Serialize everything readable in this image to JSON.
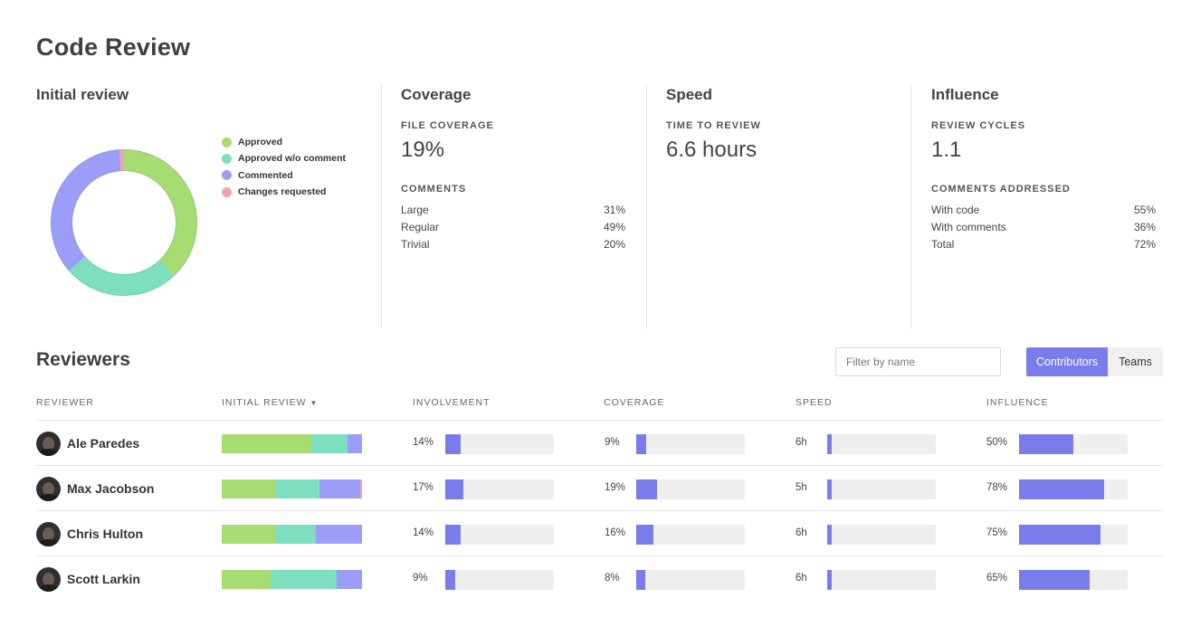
{
  "page": {
    "title": "Code Review"
  },
  "initial_review": {
    "title": "Initial review",
    "legend": [
      {
        "label": "Approved",
        "color": "#a7dc72",
        "value": 0.38
      },
      {
        "label": "Approved w/o comment",
        "color": "#7ddfc0",
        "value": 0.255
      },
      {
        "label": "Commented",
        "color": "#9b9df9",
        "value": 0.355
      },
      {
        "label": "Changes requested",
        "color": "#f3a2aa",
        "value": 0.01
      }
    ]
  },
  "coverage": {
    "title": "Coverage",
    "file_coverage_label": "FILE COVERAGE",
    "file_coverage_value": "19%",
    "comments_label": "COMMENTS",
    "rows": [
      {
        "label": "Large",
        "value": "31%"
      },
      {
        "label": "Regular",
        "value": "49%"
      },
      {
        "label": "Trivial",
        "value": "20%"
      }
    ]
  },
  "speed": {
    "title": "Speed",
    "time_label": "TIME TO REVIEW",
    "time_value": "6.6 hours"
  },
  "influence": {
    "title": "Influence",
    "cycles_label": "REVIEW CYCLES",
    "cycles_value": "1.1",
    "addressed_label": "COMMENTS ADDRESSED",
    "rows": [
      {
        "label": "With code",
        "value": "55%"
      },
      {
        "label": "With comments",
        "value": "36%"
      },
      {
        "label": "Total",
        "value": "72%"
      }
    ]
  },
  "reviewers": {
    "title": "Reviewers",
    "filter_placeholder": "Filter by name",
    "toggle": {
      "contributors": "Contributors",
      "teams": "Teams"
    },
    "columns": {
      "reviewer": "REVIEWER",
      "initial_review": "INITIAL REVIEW",
      "involvement": "INVOLVEMENT",
      "coverage": "COVERAGE",
      "speed": "SPEED",
      "influence": "INFLUENCE"
    },
    "bar_color": "#7b7cec",
    "rows": [
      {
        "name": "Ale Paredes",
        "stack": [
          0.64,
          0.26,
          0.1,
          0.0
        ],
        "involvement": "14%",
        "involvement_frac": 0.14,
        "coverage": "9%",
        "coverage_frac": 0.09,
        "speed": "6h",
        "speed_frac": 0.045,
        "influence": "50%",
        "influence_frac": 0.5
      },
      {
        "name": "Max Jacobson",
        "stack": [
          0.39,
          0.31,
          0.29,
          0.01
        ],
        "involvement": "17%",
        "involvement_frac": 0.17,
        "coverage": "19%",
        "coverage_frac": 0.19,
        "speed": "5h",
        "speed_frac": 0.04,
        "influence": "78%",
        "influence_frac": 0.78
      },
      {
        "name": "Chris Hulton",
        "stack": [
          0.39,
          0.28,
          0.33,
          0.0
        ],
        "involvement": "14%",
        "involvement_frac": 0.14,
        "coverage": "16%",
        "coverage_frac": 0.16,
        "speed": "6h",
        "speed_frac": 0.045,
        "influence": "75%",
        "influence_frac": 0.75
      },
      {
        "name": "Scott Larkin",
        "stack": [
          0.35,
          0.47,
          0.18,
          0.0
        ],
        "involvement": "9%",
        "involvement_frac": 0.09,
        "coverage": "8%",
        "coverage_frac": 0.08,
        "speed": "6h",
        "speed_frac": 0.045,
        "influence": "65%",
        "influence_frac": 0.65
      }
    ]
  }
}
